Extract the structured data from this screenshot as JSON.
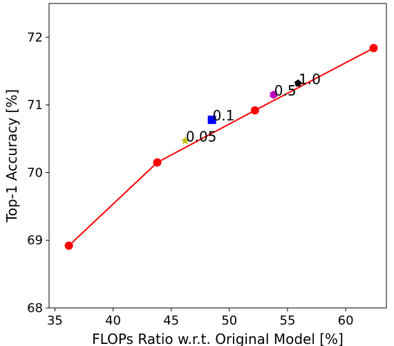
{
  "chart_data": {
    "type": "scatter",
    "xlabel": "FLOPs Ratio w.r.t. Original Model [%]",
    "ylabel": "Top-1 Accuracy [%]",
    "xlim": [
      34.5,
      63.5
    ],
    "ylim": [
      68,
      72.5
    ],
    "xticks": [
      35,
      40,
      45,
      50,
      55,
      60
    ],
    "yticks": [
      68,
      69,
      70,
      71,
      72
    ],
    "grid": false,
    "series": [
      {
        "type": "line",
        "color": "#ff0000",
        "marker": "circle",
        "x": [
          36.2,
          43.8,
          52.2,
          62.4
        ],
        "y": [
          68.92,
          70.15,
          70.92,
          71.84
        ]
      }
    ],
    "points": [
      {
        "label": "0.05",
        "x": 46.2,
        "y": 70.47,
        "marker": "star",
        "color": "#bfbf00"
      },
      {
        "label": "0.1",
        "x": 48.5,
        "y": 70.78,
        "marker": "square",
        "color": "#0000ff"
      },
      {
        "label": "0.5",
        "x": 53.8,
        "y": 71.15,
        "marker": "hexagon",
        "color": "#bf00bf"
      },
      {
        "label": "1.0",
        "x": 55.9,
        "y": 71.32,
        "marker": "pentagon",
        "color": "#000000"
      }
    ]
  }
}
